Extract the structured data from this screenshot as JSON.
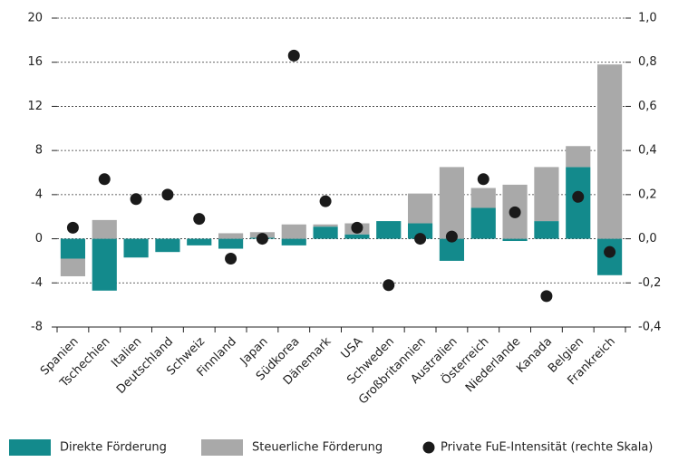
{
  "chart_data": {
    "type": "bar",
    "categories": [
      "Spanien",
      "Tschechien",
      "Italien",
      "Deutschland",
      "Schweiz",
      "Finnland",
      "Japan",
      "Südkorea",
      "Dänemark",
      "USA",
      "Schweden",
      "Großbritannien",
      "Australien",
      "Österreich",
      "Niederlande",
      "Kanada",
      "Belgien",
      "Frankreich"
    ],
    "series": [
      {
        "name": "Direkte Förderung",
        "color": "#138a8c",
        "values": [
          -1.8,
          -4.7,
          -1.7,
          -1.2,
          -0.6,
          -0.9,
          0.1,
          -0.6,
          1.1,
          0.4,
          1.6,
          1.4,
          -2.0,
          2.8,
          -0.2,
          1.6,
          6.5,
          -3.3
        ]
      },
      {
        "name": "Steuerliche Förderung",
        "color": "#a9a9a9",
        "values": [
          -1.6,
          1.7,
          0,
          0,
          0,
          0.5,
          0.5,
          1.3,
          0.2,
          1.0,
          0,
          2.7,
          6.5,
          1.8,
          4.9,
          4.9,
          1.9,
          15.8
        ]
      },
      {
        "name": "Private FuE-Intensität (rechte Skala)",
        "color": "#1a1a1a",
        "axis": "y2",
        "type": "scatter",
        "values": [
          0.05,
          0.27,
          0.18,
          0.2,
          0.09,
          -0.09,
          0.0,
          0.83,
          0.17,
          0.05,
          -0.21,
          0.0,
          0.01,
          0.27,
          0.12,
          -0.26,
          0.19,
          -0.06
        ]
      }
    ],
    "ylim": [
      -8,
      20
    ],
    "yticks": [
      -8,
      -4,
      0,
      4,
      8,
      12,
      16,
      20
    ],
    "y2lim": [
      -0.4,
      1.0
    ],
    "y2ticks": [
      {
        "value": -0.4,
        "label": "-0,4"
      },
      {
        "value": -0.2,
        "label": "-0,2"
      },
      {
        "value": 0,
        "label": "0,0"
      },
      {
        "value": 0.2,
        "label": "0,2"
      },
      {
        "value": 0.4,
        "label": "0,4"
      },
      {
        "value": 0.6,
        "label": "0,6"
      },
      {
        "value": 0.8,
        "label": "0,8"
      },
      {
        "value": 1.0,
        "label": "1,0"
      }
    ],
    "grid": true,
    "stacked": true,
    "legend": "bottom"
  }
}
